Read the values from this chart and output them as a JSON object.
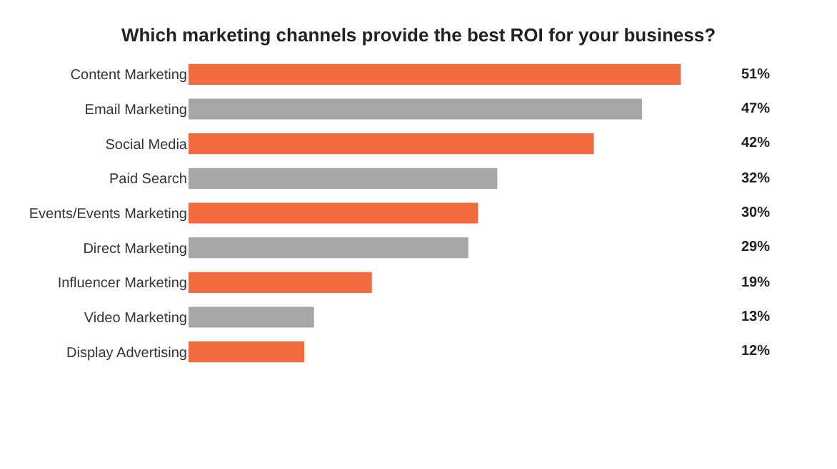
{
  "chart_data": {
    "type": "bar",
    "orientation": "horizontal",
    "title": "Which marketing channels provide the best ROI for your business?",
    "categories": [
      "Content Marketing",
      "Email Marketing",
      "Social Media",
      "Paid Search",
      "Events/Events Marketing",
      "Direct Marketing",
      "Influencer Marketing",
      "Video Marketing",
      "Display Advertising"
    ],
    "values": [
      51,
      47,
      42,
      32,
      30,
      29,
      19,
      13,
      12
    ],
    "value_labels": [
      "51%",
      "47%",
      "42%",
      "32%",
      "30%",
      "29%",
      "19%",
      "13%",
      "12%"
    ],
    "colors": [
      "#f26a3d",
      "#a6a6a6",
      "#f26a3d",
      "#a6a6a6",
      "#f26a3d",
      "#a6a6a6",
      "#f26a3d",
      "#a6a6a6",
      "#f26a3d"
    ],
    "grid": false,
    "legend": false
  }
}
